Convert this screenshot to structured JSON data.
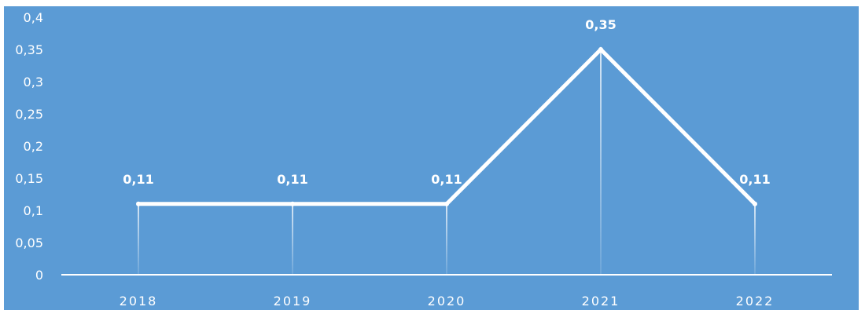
{
  "chart_data": {
    "type": "line",
    "categories": [
      "2018",
      "2019",
      "2020",
      "2021",
      "2022"
    ],
    "series": [
      {
        "values": [
          0.11,
          0.11,
          0.11,
          0.35,
          0.11
        ]
      }
    ],
    "data_labels": [
      "0,11",
      "0,11",
      "0,11",
      "0,35",
      "0,11"
    ],
    "y_ticks": [
      0,
      0.05,
      0.1,
      0.15,
      0.2,
      0.25,
      0.3,
      0.35,
      0.4
    ],
    "y_tick_labels": [
      "0",
      "0,05",
      "0,1",
      "0,15",
      "0,2",
      "0,25",
      "0,3",
      "0,35",
      "0,4"
    ],
    "ylim": [
      0,
      0.4
    ],
    "grid": false,
    "drop_lines": true,
    "legend": "none",
    "colors": {
      "background": "#5b9bd5",
      "line": "#ffffff",
      "text": "#ffffff"
    }
  }
}
